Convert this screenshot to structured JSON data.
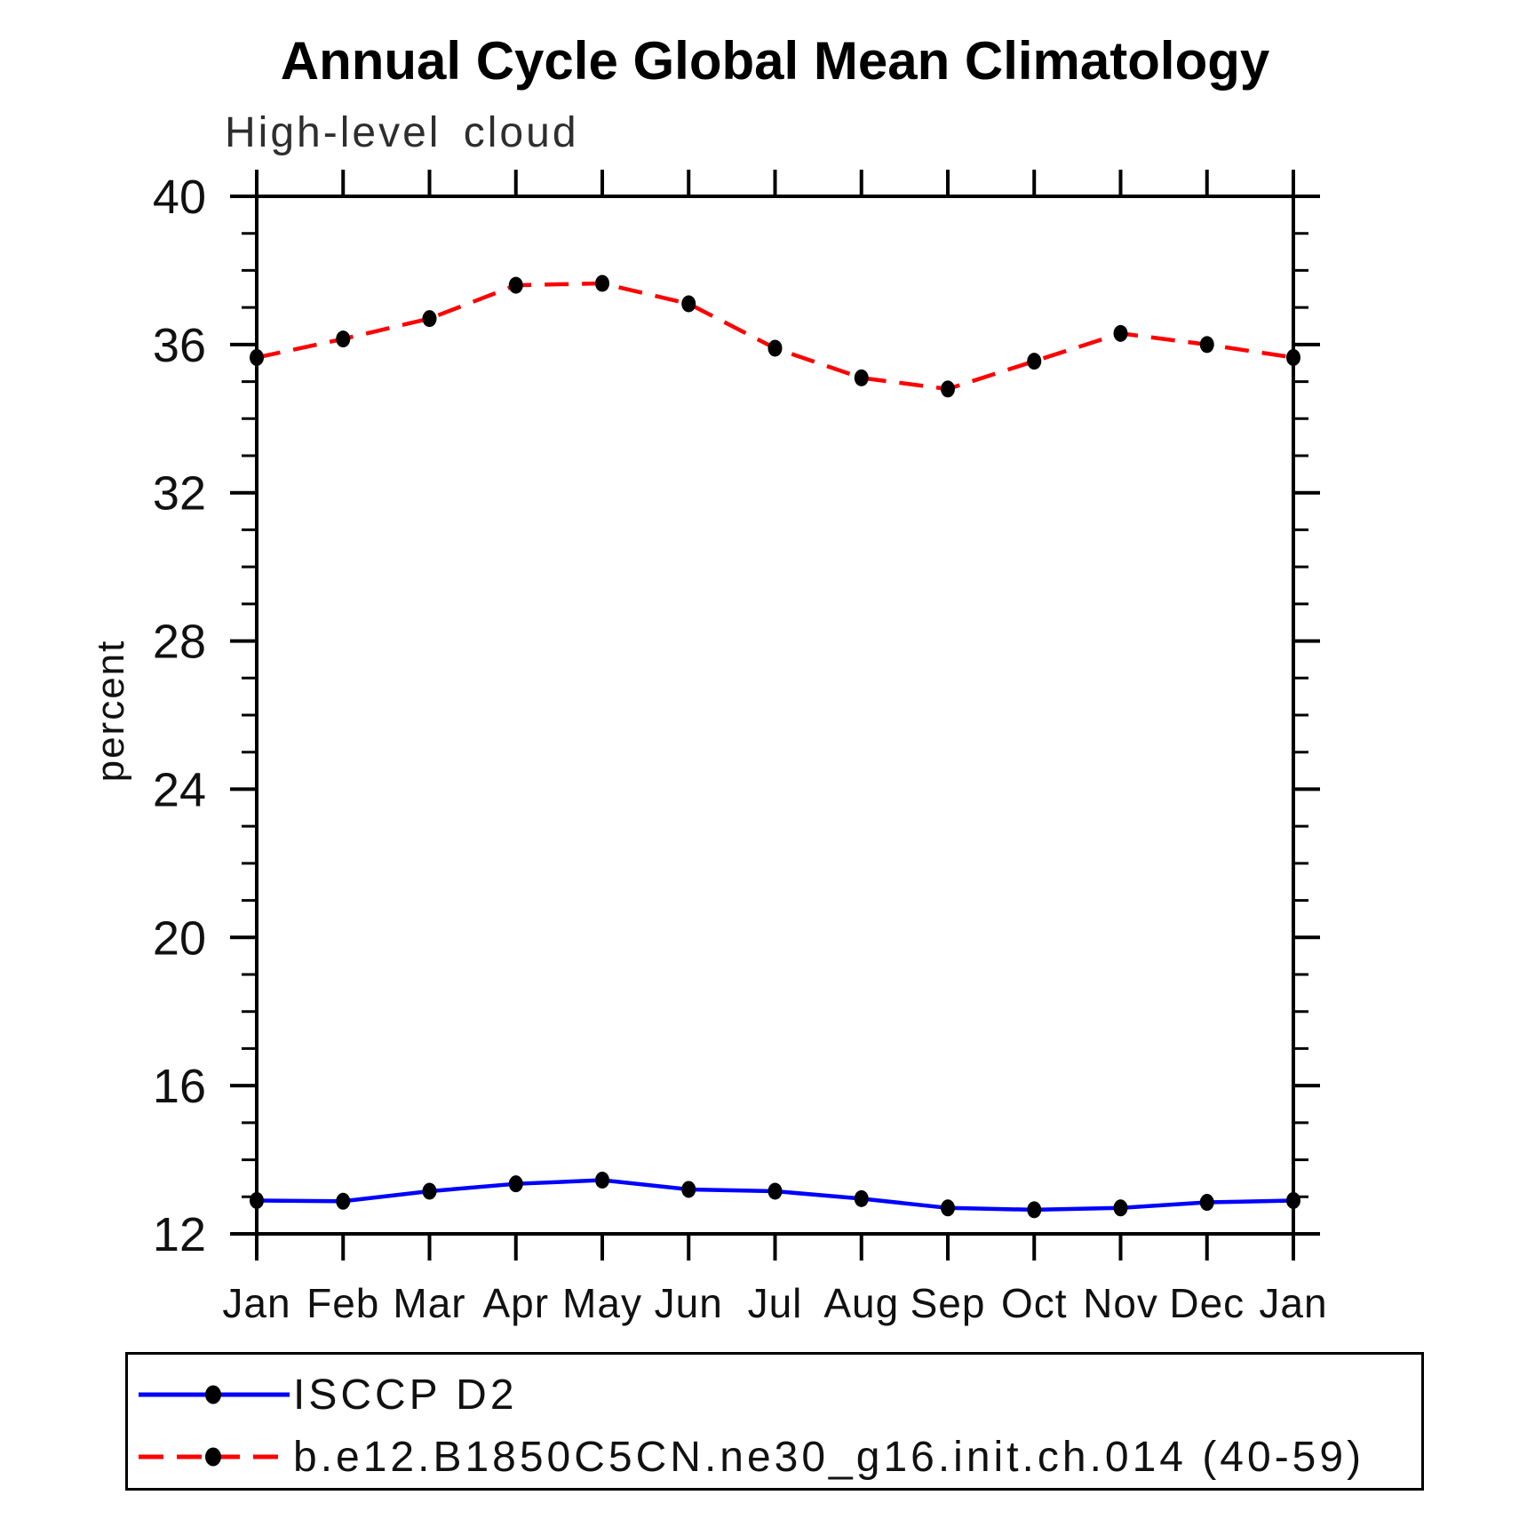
{
  "chart_data": {
    "type": "line",
    "title": "Annual Cycle Global Mean Climatology",
    "subtitle": "High-level cloud",
    "ylabel": "percent",
    "ylim": [
      12,
      40
    ],
    "ytick_major": [
      12,
      16,
      20,
      24,
      28,
      32,
      36,
      40
    ],
    "ytick_minor_interval": 1,
    "x_categories": [
      "Jan",
      "Feb",
      "Mar",
      "Apr",
      "May",
      "Jun",
      "Jul",
      "Aug",
      "Sep",
      "Oct",
      "Nov",
      "Dec",
      "Jan"
    ],
    "grid": false,
    "legend_position": "bottom-left-box",
    "axis_color": "#000000",
    "marker_color": "#000000",
    "series": [
      {
        "name": "ISCCP D2",
        "line_color": "#0000ff",
        "line_style": "solid",
        "values": [
          12.9,
          12.88,
          13.15,
          13.35,
          13.45,
          13.2,
          13.15,
          12.95,
          12.7,
          12.65,
          12.7,
          12.85,
          12.9
        ]
      },
      {
        "name": "b.e12.B1850C5CN.ne30_g16.init.ch.014 (40-59)",
        "line_color": "#ff0000",
        "line_style": "dashed",
        "values": [
          35.65,
          36.15,
          36.7,
          37.6,
          37.65,
          37.1,
          35.9,
          35.1,
          34.8,
          35.55,
          36.3,
          36.0,
          35.65
        ]
      }
    ]
  }
}
